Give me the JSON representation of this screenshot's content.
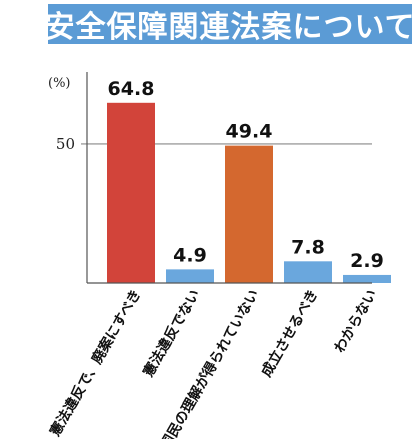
{
  "title": "安全保障関連法案について",
  "colors": {
    "banner": "#5b9bd5",
    "axis": "#555555",
    "gridline": "#888888"
  },
  "chart_data": {
    "type": "bar",
    "title": "安全保障関連法案について",
    "unit_label": "(%)",
    "categories": [
      "憲法違反で、廃案にすべき",
      "憲法違反でない",
      "国民の理解が得られていない",
      "成立させるべき",
      "わからない"
    ],
    "values": [
      64.8,
      4.9,
      49.4,
      7.8,
      2.9
    ],
    "value_labels": [
      "64.8",
      "4.9",
      "49.4",
      "7.8",
      "2.9"
    ],
    "bar_colors": [
      "#d2443a",
      "#6aa7dd",
      "#d4682f",
      "#6aa7dd",
      "#6aa7dd"
    ],
    "y_ticks": [
      50
    ],
    "y_tick_labels": [
      "50"
    ],
    "ylim": [
      0,
      73
    ],
    "grid": false,
    "xlabel": "",
    "ylabel": ""
  }
}
